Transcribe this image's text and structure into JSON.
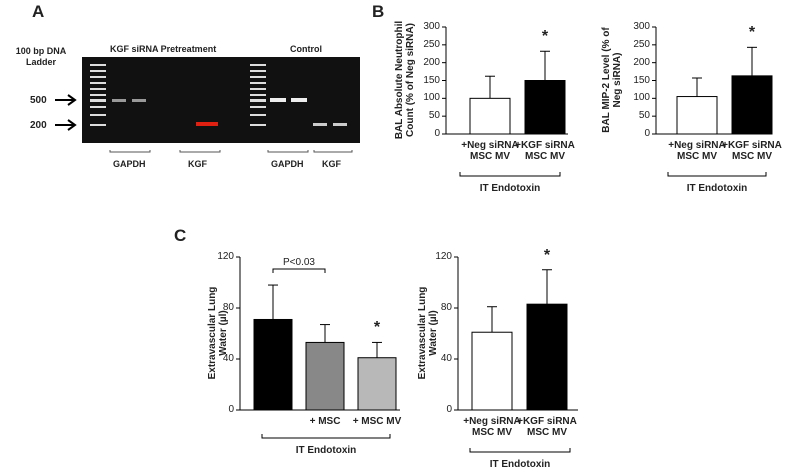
{
  "panel_labels": [
    "A",
    "B",
    "C"
  ],
  "gel": {
    "ladder_label": "100 bp DNA Ladder",
    "group_labels": [
      "KGF siRNA Pretreatment",
      "Control"
    ],
    "size_markers": [
      "500",
      "200"
    ],
    "lane_labels": [
      "GAPDH",
      "KGF",
      "GAPDH",
      "KGF"
    ]
  },
  "chart_data": [
    {
      "type": "bar",
      "ylabel": "BAL Absolute Neutrophil Count (% of Neg siRNA)",
      "categories": [
        "+Neg siRNA MSC MV",
        "+KGF siRNA MSC MV"
      ],
      "values": [
        100,
        150
      ],
      "errors": [
        62,
        82
      ],
      "colors": [
        "#ffffff",
        "#000000"
      ],
      "ylim": [
        0,
        300
      ],
      "yticks": [
        0,
        50,
        100,
        150,
        200,
        250,
        300
      ],
      "annotation": "*",
      "group_label": "IT Endotoxin"
    },
    {
      "type": "bar",
      "ylabel": "BAL MIP-2 Level (% of Neg siRNA)",
      "categories": [
        "+Neg siRNA MSC MV",
        "+KGF siRNA MSC MV"
      ],
      "values": [
        105,
        163
      ],
      "errors": [
        52,
        80
      ],
      "colors": [
        "#ffffff",
        "#000000"
      ],
      "ylim": [
        0,
        300
      ],
      "yticks": [
        0,
        50,
        100,
        150,
        200,
        250,
        300
      ],
      "annotation": "*",
      "group_label": "IT Endotoxin"
    },
    {
      "type": "bar",
      "ylabel": "Extravascular Lung Water (µl)",
      "categories": [
        null,
        "+ MSC",
        "+ MSC MV"
      ],
      "values": [
        71,
        53,
        41
      ],
      "errors": [
        27,
        14,
        12
      ],
      "colors": [
        "#000000",
        "#888888",
        "#b8b8b8"
      ],
      "ylim": [
        0,
        120
      ],
      "yticks": [
        0,
        40,
        80,
        120
      ],
      "annotation": "*",
      "comparison": "P<0.03",
      "group_label": "IT Endotoxin"
    },
    {
      "type": "bar",
      "ylabel": "Extravascular Lung Water (µl)",
      "categories": [
        "+Neg siRNA MSC MV",
        "+KGF siRNA MSC MV"
      ],
      "values": [
        61,
        83
      ],
      "errors": [
        20,
        27
      ],
      "colors": [
        "#ffffff",
        "#000000"
      ],
      "ylim": [
        0,
        120
      ],
      "yticks": [
        0,
        40,
        80,
        120
      ],
      "annotation": "*",
      "group_label": "IT Endotoxin"
    }
  ]
}
